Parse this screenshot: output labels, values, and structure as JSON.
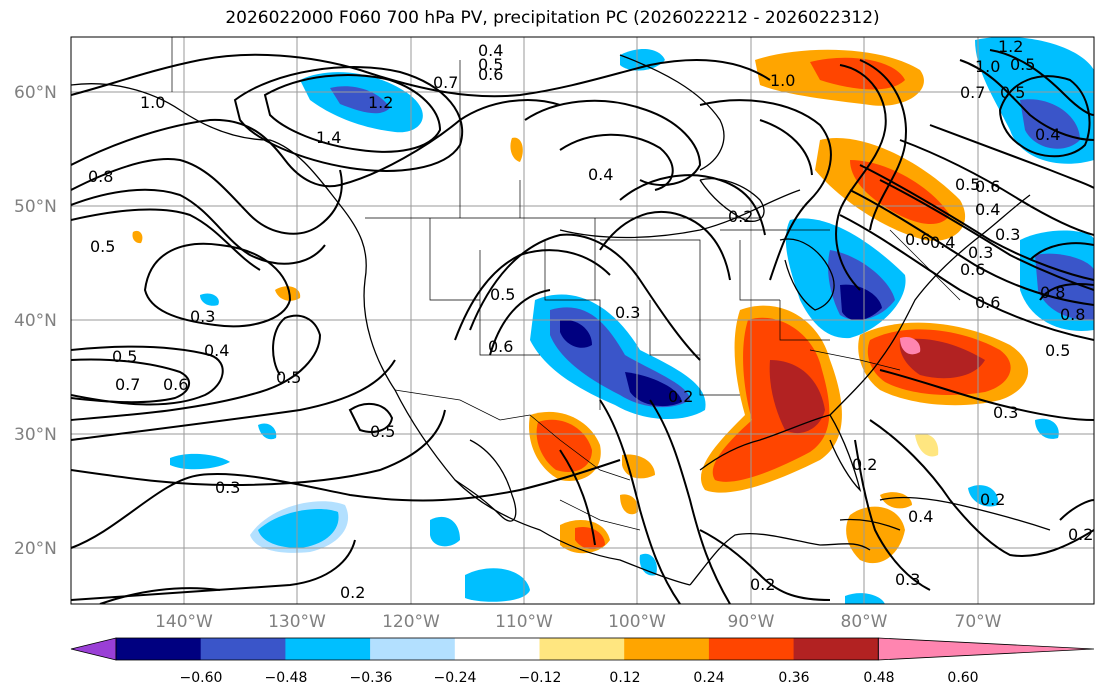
{
  "title": "2026022000 F060 700 hPa PV, precipitation PC (2026022212 - 2026022312)",
  "lat_labels": [
    "60°N",
    "50°N",
    "40°N",
    "30°N",
    "20°N"
  ],
  "lon_labels": [
    "140°W",
    "130°W",
    "120°W",
    "110°W",
    "100°W",
    "90°W",
    "80°W",
    "70°W"
  ],
  "colorbar": {
    "tick_labels": [
      "−0.60",
      "−0.48",
      "−0.36",
      "−0.24",
      "−0.12",
      "0.12",
      "0.24",
      "0.36",
      "0.48",
      "0.60"
    ],
    "bin_colors": [
      "#9a3fd6",
      "#000080",
      "#3a55c9",
      "#00bfff",
      "#b3e0ff",
      "#ffffff",
      "#ffe680",
      "#ffa500",
      "#ff4500",
      "#b22222",
      "#ff85b0"
    ]
  },
  "contour_labels": [
    "0.4",
    "0.5",
    "0.6",
    "0.7",
    "1.2",
    "1.4",
    "1.0",
    "0.8",
    "0.5",
    "0.3",
    "0.4",
    "0.5",
    "0.7",
    "0.6",
    "0.5",
    "0.3",
    "0.5",
    "0.3",
    "0.2",
    "0.5",
    "0.6",
    "0.2",
    "0.4",
    "1.0",
    "1.2",
    "1.0",
    "0.7",
    "0.5",
    "0.4",
    "0.6",
    "0.5",
    "0.4",
    "0.3",
    "0.6",
    "0.8",
    "0.5",
    "0.3",
    "0.2",
    "0.4",
    "0.3",
    "0.2",
    "0.2",
    "0.6",
    "0.2",
    "0.2",
    "0.4",
    "0.5",
    "0.3",
    "0.6",
    "0.8"
  ],
  "legend": {
    "field_contours": "700 hPa PV",
    "field_shading": "precipitation PC"
  },
  "colors": {
    "grid": "#9a9a9a",
    "contour": "#000000",
    "label_gray": "#808080"
  }
}
